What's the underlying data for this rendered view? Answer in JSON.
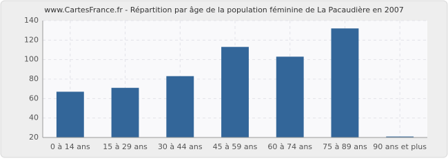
{
  "chart_data": {
    "type": "bar",
    "title": "www.CartesFrance.fr - Répartition par âge de la population féminine de La Pacaudière en 2007",
    "categories": [
      "0 à 14 ans",
      "15 à 29 ans",
      "30 à 44 ans",
      "45 à 59 ans",
      "60 à 74 ans",
      "75 à 89 ans",
      "90 ans et plus"
    ],
    "values": [
      67,
      71,
      83,
      113,
      103,
      132,
      21
    ],
    "color": "#336699",
    "ylim": [
      20,
      140
    ],
    "yticks": [
      20,
      40,
      60,
      80,
      100,
      120,
      140
    ],
    "grid": true
  }
}
